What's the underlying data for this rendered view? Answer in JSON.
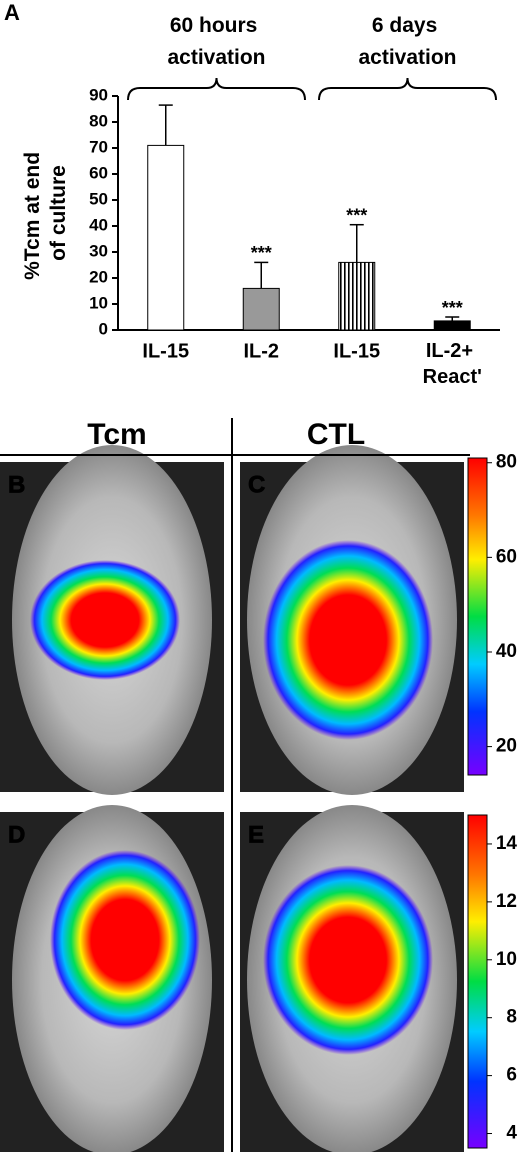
{
  "chart_data": {
    "type": "bar",
    "panel_label": "A",
    "y_label": "%Tcm at end of culture",
    "groups": [
      {
        "label": "60 hours activation",
        "from": 0,
        "to": 1
      },
      {
        "label": "6 days activation",
        "from": 2,
        "to": 3
      }
    ],
    "categories": [
      "IL-15",
      "IL-2",
      "IL-15",
      "IL-2+ React'"
    ],
    "values": [
      71,
      16,
      26,
      3.5
    ],
    "errors": [
      15.5,
      10,
      14.5,
      1.5
    ],
    "significance": [
      null,
      "***",
      "***",
      "***"
    ],
    "fills": [
      "#ffffff",
      "#999999",
      "stripes",
      "#000000"
    ],
    "ylim": [
      0,
      90
    ],
    "yticks": [
      0,
      10,
      20,
      30,
      40,
      50,
      60,
      70,
      80,
      90
    ]
  },
  "images": {
    "column_labels": [
      "Tcm",
      "CTL"
    ],
    "panel_labels": [
      "B",
      "C",
      "D",
      "E"
    ],
    "colorbars": [
      {
        "lim": [
          14,
          81
        ],
        "ticks": [
          20,
          40,
          60,
          80
        ]
      },
      {
        "lim": [
          3.5,
          15
        ],
        "ticks": [
          4,
          6,
          8,
          10,
          12,
          14
        ]
      }
    ]
  }
}
